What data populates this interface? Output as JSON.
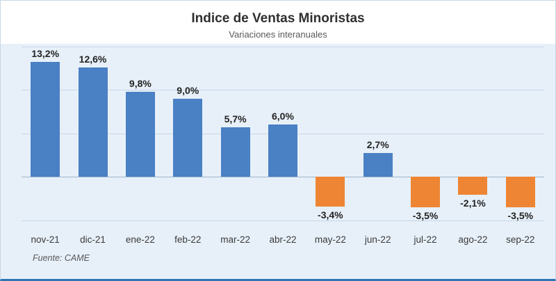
{
  "chart": {
    "title": "Indice de Ventas Minoristas",
    "subtitle": "Variaciones interanuales",
    "source": "Fuente: CAME"
  },
  "chart_data": {
    "type": "bar",
    "title": "Indice de Ventas Minoristas",
    "subtitle": "Variaciones interanuales",
    "categories": [
      "nov-21",
      "dic-21",
      "ene-22",
      "feb-22",
      "mar-22",
      "abr-22",
      "may-22",
      "jun-22",
      "jul-22",
      "ago-22",
      "sep-22"
    ],
    "values": [
      13.2,
      12.6,
      9.8,
      9.0,
      5.7,
      6.0,
      -3.4,
      2.7,
      -3.5,
      -2.1,
      -3.5
    ],
    "value_labels": [
      "13,2%",
      "12,6%",
      "9,8%",
      "9,0%",
      "5,7%",
      "6,0%",
      "-3,4%",
      "2,7%",
      "-3,5%",
      "-2,1%",
      "-3,5%"
    ],
    "positive_color": "#4a80c4",
    "negative_color": "#ee8534",
    "plot_background": "#e7f0f9",
    "ylim": [
      -5,
      15
    ],
    "grid": true,
    "legend": "none",
    "xlabel": "",
    "ylabel": "",
    "source": "Fuente: CAME"
  }
}
